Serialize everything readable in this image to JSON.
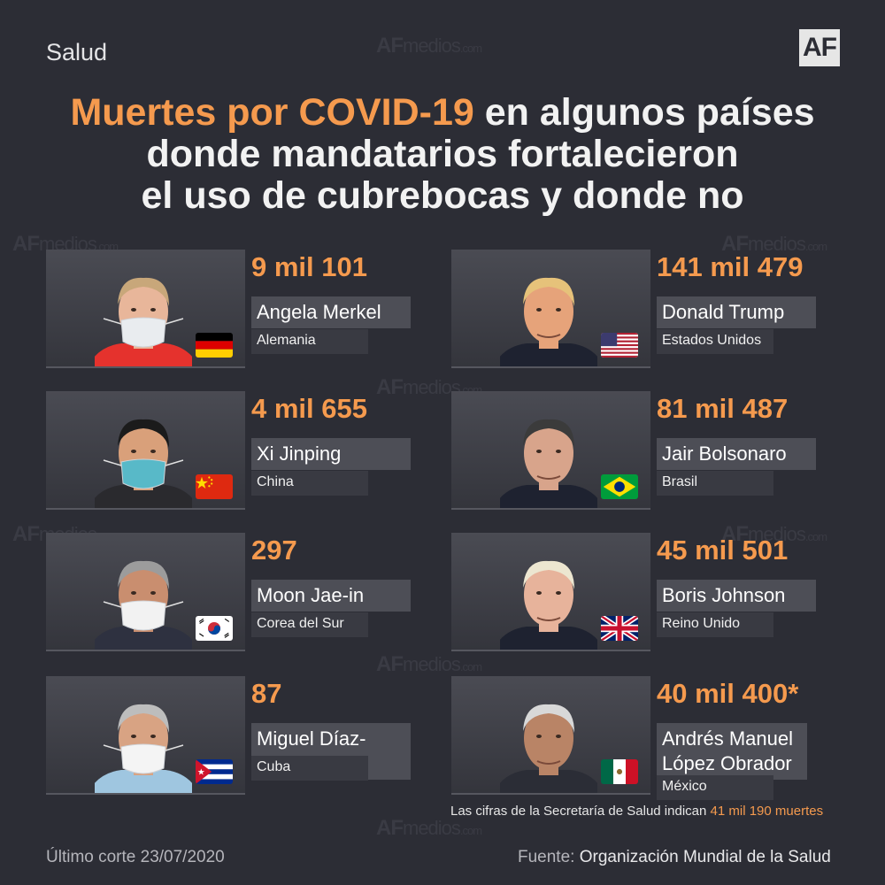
{
  "header": {
    "section": "Salud",
    "logo": "AF",
    "title_highlight": "Muertes por COVID-19",
    "title_rest1": " en algunos países",
    "title_line2": "donde mandatarios fortalecieron",
    "title_line3": "el uso de cubrebocas y donde no"
  },
  "watermark": {
    "af": "AF",
    "medios": "medios",
    "com": ".com"
  },
  "leaders": [
    {
      "deaths": "9 mil 101",
      "name": "Angela Merkel",
      "country": "Alemania",
      "flag": "germany-flag",
      "skin": "#e8b69a",
      "hair": "#c8a77a",
      "cloth": "#e5322d",
      "mask": "#e9ecef"
    },
    {
      "deaths": "4 mil 655",
      "name": "Xi Jinping",
      "country": "China",
      "flag": "china-flag",
      "skin": "#d9a07a",
      "hair": "#1b1b1b",
      "cloth": "#2a2a2e",
      "mask": "#58b9c8"
    },
    {
      "deaths": "297",
      "name": "Moon Jae-in",
      "country": "Corea del Sur",
      "flag": "south-korea-flag",
      "skin": "#c98e6f",
      "hair": "#9c9c9c",
      "cloth": "#2e3140",
      "mask": "#f2f2f2"
    },
    {
      "deaths": "87",
      "name": "Miguel Díaz-Canel",
      "country": "Cuba",
      "flag": "cuba-flag",
      "skin": "#d8a383",
      "hair": "#bdbdbd",
      "cloth": "#9fc6e0",
      "mask": "#f4f4f4"
    },
    {
      "deaths": "141 mil 479",
      "name": "Donald Trump",
      "country": "Estados Unidos",
      "flag": "usa-flag",
      "skin": "#e6a37a",
      "hair": "#e6c27a",
      "cloth": "#1e2230",
      "mask": ""
    },
    {
      "deaths": "81 mil 487",
      "name": "Jair Bolsonaro",
      "country": "Brasil",
      "flag": "brazil-flag",
      "skin": "#d8a48b",
      "hair": "#3b3b3b",
      "cloth": "#1e2230",
      "mask": ""
    },
    {
      "deaths": "45 mil 501",
      "name": "Boris Johnson",
      "country": "Reino Unido",
      "flag": "uk-flag",
      "skin": "#e7b39b",
      "hair": "#ece6d0",
      "cloth": "#1e2230",
      "mask": ""
    },
    {
      "deaths": "40 mil 400*",
      "name": "Andrés Manuel López Obrador",
      "country": "México",
      "flag": "mexico-flag",
      "skin": "#b98466",
      "hair": "#d8d8d8",
      "cloth": "#2b2d36",
      "mask": ""
    }
  ],
  "note": {
    "prefix": "Las cifras de la Secretaría de Salud indican ",
    "highlight": "41 mil 190 muertes"
  },
  "footer": {
    "cutoff": "Último corte 23/07/2020",
    "source_prefix": "Fuente: ",
    "source_name": "Organización Mundial de la Salud"
  }
}
